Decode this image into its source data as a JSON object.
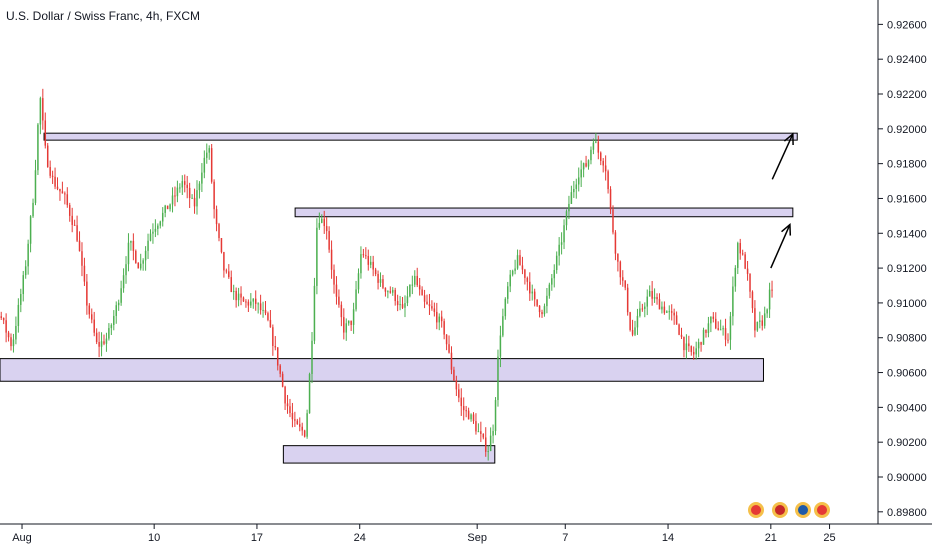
{
  "header": {
    "title": "U.S. Dollar / Swiss Franc, 4h, FXCM"
  },
  "colors": {
    "up": "#4caf50",
    "down": "#e53935",
    "zone_fill": "#d9d2f0",
    "zone_stroke": "#000000",
    "arrow": "#000000",
    "axis": "#131722"
  },
  "chart_data": {
    "type": "candlestick",
    "title": "U.S. Dollar / Swiss Franc, 4h, FXCM",
    "xlabel": "",
    "ylabel": "",
    "ylim": [
      0.8973,
      0.9274
    ],
    "x_ticks": [
      "Aug",
      "10",
      "17",
      "24",
      "Sep",
      "7",
      "14",
      "21",
      "25"
    ],
    "x_tick_day_index": [
      0,
      9,
      16,
      23,
      31,
      37,
      44,
      51,
      55
    ],
    "x_range_days": [
      -1.5,
      58.3
    ],
    "y_ticks": [
      "0.92600",
      "0.92400",
      "0.92200",
      "0.92000",
      "0.91800",
      "0.91600",
      "0.91400",
      "0.91200",
      "0.91000",
      "0.90800",
      "0.90600",
      "0.90400",
      "0.90200",
      "0.90000",
      "0.89800"
    ],
    "price_path": [
      [
        -4.0,
        0.918
      ],
      [
        -2.8,
        0.913
      ],
      [
        -2.3,
        0.914
      ],
      [
        -1.5,
        0.9095
      ],
      [
        -0.6,
        0.9075
      ],
      [
        0.3,
        0.912
      ],
      [
        0.9,
        0.9165
      ],
      [
        1.3,
        0.922
      ],
      [
        1.7,
        0.9185
      ],
      [
        2.2,
        0.917
      ],
      [
        3.0,
        0.916
      ],
      [
        3.8,
        0.914
      ],
      [
        4.5,
        0.91
      ],
      [
        5.2,
        0.9075
      ],
      [
        5.9,
        0.908
      ],
      [
        6.6,
        0.91
      ],
      [
        7.4,
        0.9135
      ],
      [
        8.1,
        0.912
      ],
      [
        8.8,
        0.914
      ],
      [
        9.6,
        0.915
      ],
      [
        10.4,
        0.916
      ],
      [
        11.0,
        0.917
      ],
      [
        11.8,
        0.9155
      ],
      [
        12.4,
        0.918
      ],
      [
        12.8,
        0.919
      ],
      [
        13.2,
        0.915
      ],
      [
        13.8,
        0.912
      ],
      [
        14.5,
        0.9105
      ],
      [
        15.2,
        0.91
      ],
      [
        16.0,
        0.91
      ],
      [
        16.8,
        0.909
      ],
      [
        17.4,
        0.907
      ],
      [
        18.0,
        0.9045
      ],
      [
        18.6,
        0.903
      ],
      [
        19.4,
        0.9025
      ],
      [
        19.8,
        0.9075
      ],
      [
        20.2,
        0.915
      ],
      [
        20.8,
        0.9145
      ],
      [
        21.4,
        0.9105
      ],
      [
        22.0,
        0.9085
      ],
      [
        22.6,
        0.909
      ],
      [
        23.2,
        0.913
      ],
      [
        23.9,
        0.912
      ],
      [
        24.6,
        0.911
      ],
      [
        25.4,
        0.9105
      ],
      [
        26.0,
        0.9095
      ],
      [
        26.8,
        0.9115
      ],
      [
        27.4,
        0.91
      ],
      [
        28.1,
        0.9095
      ],
      [
        28.8,
        0.9085
      ],
      [
        29.4,
        0.906
      ],
      [
        30.0,
        0.904
      ],
      [
        30.6,
        0.9035
      ],
      [
        31.2,
        0.9025
      ],
      [
        31.8,
        0.9015
      ],
      [
        32.2,
        0.903
      ],
      [
        32.6,
        0.908
      ],
      [
        33.2,
        0.911
      ],
      [
        33.8,
        0.9125
      ],
      [
        34.4,
        0.9115
      ],
      [
        35.0,
        0.91
      ],
      [
        35.6,
        0.9095
      ],
      [
        36.2,
        0.9115
      ],
      [
        36.8,
        0.9135
      ],
      [
        37.4,
        0.916
      ],
      [
        38.0,
        0.9175
      ],
      [
        38.6,
        0.918
      ],
      [
        39.0,
        0.9195
      ],
      [
        39.4,
        0.9185
      ],
      [
        39.8,
        0.918
      ],
      [
        40.2,
        0.915
      ],
      [
        40.6,
        0.9125
      ],
      [
        41.2,
        0.9105
      ],
      [
        41.6,
        0.908
      ],
      [
        42.2,
        0.9095
      ],
      [
        42.8,
        0.9105
      ],
      [
        43.4,
        0.91
      ],
      [
        44.0,
        0.9095
      ],
      [
        44.6,
        0.909
      ],
      [
        45.2,
        0.9075
      ],
      [
        45.8,
        0.907
      ],
      [
        46.4,
        0.908
      ],
      [
        47.0,
        0.909
      ],
      [
        47.6,
        0.9085
      ],
      [
        48.2,
        0.908
      ],
      [
        48.8,
        0.9135
      ],
      [
        49.4,
        0.912
      ],
      [
        50.0,
        0.9085
      ],
      [
        50.6,
        0.909
      ],
      [
        51.0,
        0.9105
      ]
    ],
    "zones": [
      {
        "label": "resistance-0.9196",
        "x": [
          1.5,
          52.8
        ],
        "y": [
          0.91935,
          0.91975
        ]
      },
      {
        "label": "resistance-0.9152",
        "x": [
          18.6,
          52.5
        ],
        "y": [
          0.91495,
          0.91545
        ]
      },
      {
        "label": "support-0.9062",
        "x": [
          -1.5,
          50.5
        ],
        "y": [
          0.9055,
          0.9068
        ]
      },
      {
        "label": "support-0.9012",
        "x": [
          17.8,
          32.2
        ],
        "y": [
          0.9008,
          0.9018
        ]
      }
    ],
    "arrows": [
      {
        "from": [
          51.0,
          0.912
        ],
        "to": [
          52.3,
          0.9145
        ]
      },
      {
        "from": [
          51.1,
          0.9171
        ],
        "to": [
          52.5,
          0.9197
        ]
      }
    ],
    "grid": false,
    "legend": "none"
  }
}
